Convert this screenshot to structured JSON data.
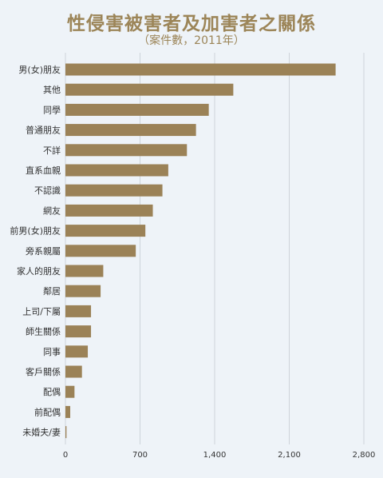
{
  "chart_data": {
    "type": "bar",
    "orientation": "horizontal",
    "title": "性侵害被害者及加害者之關係",
    "subtitle": "（案件數，2011年）",
    "categories": [
      "男(女)朋友",
      "其他",
      "同學",
      "普通朋友",
      "不詳",
      "直系血親",
      "不認識",
      "網友",
      "前男(女)朋友",
      "旁系親屬",
      "家人的朋友",
      "鄰居",
      "上司/下屬",
      "師生關係",
      "同事",
      "客戶關係",
      "配偶",
      "前配偶",
      "未婚夫/妻"
    ],
    "values": [
      2535,
      1575,
      1345,
      1225,
      1140,
      965,
      910,
      820,
      750,
      660,
      355,
      330,
      240,
      240,
      210,
      155,
      85,
      45,
      10
    ],
    "xlim": [
      0,
      2800
    ],
    "xticks": [
      0,
      700,
      1400,
      2100,
      2800
    ],
    "xtick_labels": [
      "0",
      "700",
      "1,400",
      "2,100",
      "2,800"
    ],
    "grid": true,
    "colors": {
      "bar": "#9b8257",
      "grid": "#cdd3da",
      "background": "#eef3f8",
      "title": "#9c8558"
    }
  }
}
